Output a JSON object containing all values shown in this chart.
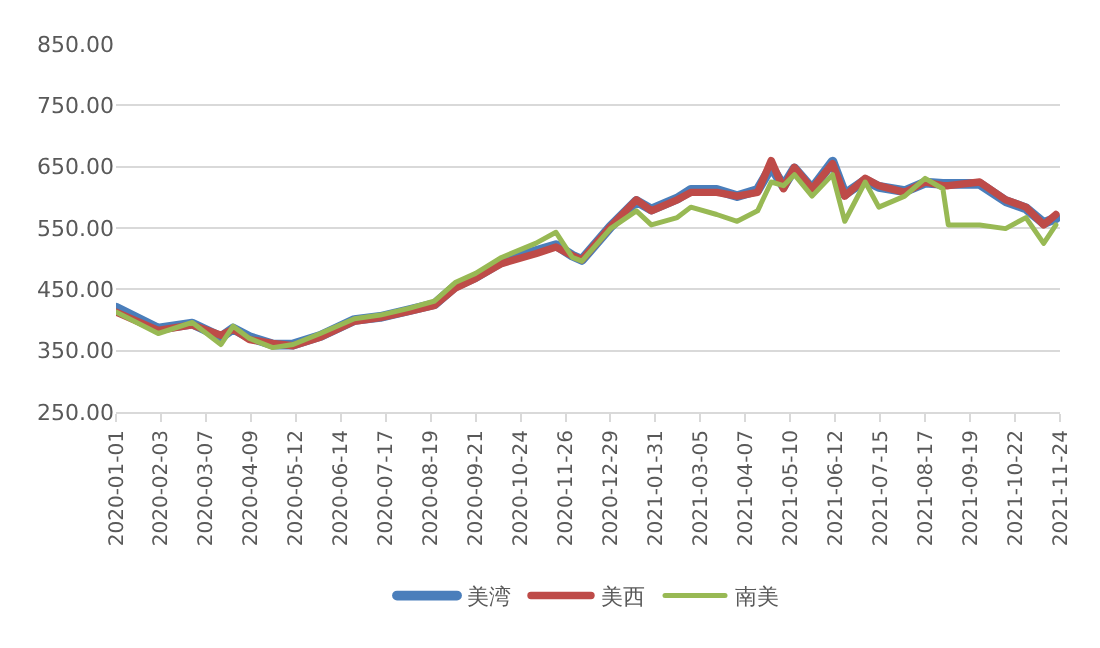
{
  "chart_data": {
    "type": "line",
    "x": [
      "2020-01-01",
      "2020-02-01",
      "2020-02-26",
      "2020-03-18",
      "2020-03-27",
      "2020-04-08",
      "2020-04-25",
      "2020-05-10",
      "2020-05-30",
      "2020-06-24",
      "2020-07-13",
      "2020-08-03",
      "2020-08-22",
      "2020-09-06",
      "2020-09-21",
      "2020-10-10",
      "2020-11-04",
      "2020-11-19",
      "2020-12-01",
      "2020-12-08",
      "2020-12-29",
      "2021-01-17",
      "2021-01-28",
      "2021-02-16",
      "2021-02-26",
      "2021-03-17",
      "2021-04-01",
      "2021-04-16",
      "2021-04-26",
      "2021-05-05",
      "2021-05-13",
      "2021-05-26",
      "2021-06-10",
      "2021-06-19",
      "2021-07-04",
      "2021-07-14",
      "2021-08-02",
      "2021-08-17",
      "2021-08-30",
      "2021-09-03",
      "2021-09-26",
      "2021-10-15",
      "2021-10-30",
      "2021-11-12",
      "2021-11-21"
    ],
    "series": [
      {
        "name": "美湾",
        "color": "#4a7ebb",
        "values": [
          420,
          386,
          394,
          372,
          386,
          372,
          360,
          360,
          374,
          400,
          405,
          416,
          426,
          455,
          470,
          495,
          512,
          522,
          505,
          498,
          552,
          594,
          580,
          598,
          612,
          612,
          602,
          612,
          650,
          618,
          647,
          614,
          658,
          605,
          628,
          617,
          610,
          624,
          622,
          622,
          622,
          594,
          582,
          558,
          566
        ]
      },
      {
        "name": "美西",
        "color": "#be4b48",
        "values": [
          413,
          383,
          392,
          375,
          385,
          368,
          362,
          358,
          372,
          398,
          404,
          414,
          424,
          452,
          468,
          492,
          508,
          519,
          505,
          498,
          552,
          596,
          578,
          596,
          608,
          608,
          602,
          608,
          660,
          614,
          649,
          614,
          655,
          602,
          631,
          619,
          608,
          625,
          619,
          619,
          625,
          596,
          584,
          555,
          572
        ]
      },
      {
        "name": "南美",
        "color": "#98b954",
        "values": [
          413,
          378,
          396,
          360,
          390,
          370,
          355,
          360,
          378,
          402,
          408,
          419,
          431,
          461,
          476,
          502,
          525,
          543,
          502,
          496,
          549,
          578,
          555,
          567,
          584,
          572,
          561,
          578,
          625,
          619,
          637,
          602,
          637,
          561,
          625,
          584,
          602,
          631,
          614,
          555,
          555,
          549,
          567,
          525,
          555
        ]
      }
    ],
    "xlim": [
      "2020-01-01",
      "2021-11-24"
    ],
    "xticks": [
      {
        "value": "2020-01-01",
        "label": "2020-01-01"
      },
      {
        "value": "2020-02-03",
        "label": "2020-02-03"
      },
      {
        "value": "2020-03-07",
        "label": "2020-03-07"
      },
      {
        "value": "2020-04-09",
        "label": "2020-04-09"
      },
      {
        "value": "2020-05-12",
        "label": "2020-05-12"
      },
      {
        "value": "2020-06-14",
        "label": "2020-06-14"
      },
      {
        "value": "2020-07-17",
        "label": "2020-07-17"
      },
      {
        "value": "2020-08-19",
        "label": "2020-08-19"
      },
      {
        "value": "2020-09-21",
        "label": "2020-09-21"
      },
      {
        "value": "2020-10-24",
        "label": "2020-10-24"
      },
      {
        "value": "2020-11-26",
        "label": "2020-11-26"
      },
      {
        "value": "2020-12-29",
        "label": "2020-12-29"
      },
      {
        "value": "2021-01-31",
        "label": "2021-01-31"
      },
      {
        "value": "2021-03-05",
        "label": "2021-03-05"
      },
      {
        "value": "2021-04-07",
        "label": "2021-04-07"
      },
      {
        "value": "2021-05-10",
        "label": "2021-05-10"
      },
      {
        "value": "2021-06-12",
        "label": "2021-06-12"
      },
      {
        "value": "2021-07-15",
        "label": "2021-07-15"
      },
      {
        "value": "2021-08-17",
        "label": "2021-08-17"
      },
      {
        "value": "2021-09-19",
        "label": "2021-09-19"
      },
      {
        "value": "2021-10-22",
        "label": "2021-10-22"
      },
      {
        "value": "2021-11-24",
        "label": "2021-11-24"
      }
    ],
    "ylim": [
      250,
      850
    ],
    "yticks": [
      {
        "value": 250,
        "label": "250.00"
      },
      {
        "value": 350,
        "label": "350.00"
      },
      {
        "value": 450,
        "label": "450.00"
      },
      {
        "value": 550,
        "label": "550.00"
      },
      {
        "value": 650,
        "label": "650.00"
      },
      {
        "value": 750,
        "label": "750.00"
      },
      {
        "value": 850,
        "label": "850.00"
      }
    ],
    "grid": "y",
    "legend": "bottom"
  }
}
